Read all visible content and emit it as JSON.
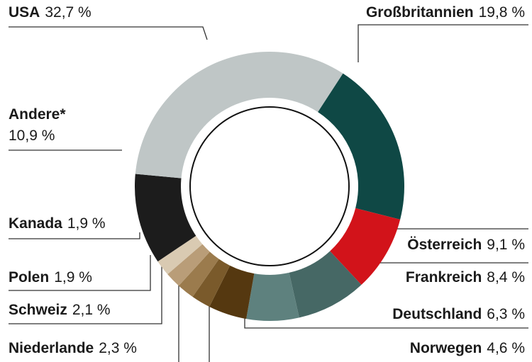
{
  "chart_data": {
    "type": "donut",
    "categories": [
      "Großbritannien",
      "Österreich",
      "Frankreich",
      "Deutschland",
      "Norwegen",
      "Niederlande",
      "Schweiz",
      "Polen",
      "Kanada",
      "Andere*",
      "USA"
    ],
    "values": [
      19.8,
      9.1,
      8.4,
      6.3,
      4.6,
      2.3,
      2.1,
      1.9,
      1.9,
      10.9,
      32.7
    ],
    "value_labels": [
      "19,8 %",
      "9,1 %",
      "8,4 %",
      "6,3 %",
      "4,6 %",
      "2,3 %",
      "2,1 %",
      "1,9 %",
      "1,9 %",
      "10,9 %",
      "32,7 %"
    ],
    "colors": [
      "#0f4845",
      "#d2131a",
      "#466865",
      "#5e817e",
      "#553810",
      "#7a5a2b",
      "#9b7b4d",
      "#b99d78",
      "#d9cab2",
      "#1c1c1c",
      "#bfc6c6"
    ]
  }
}
